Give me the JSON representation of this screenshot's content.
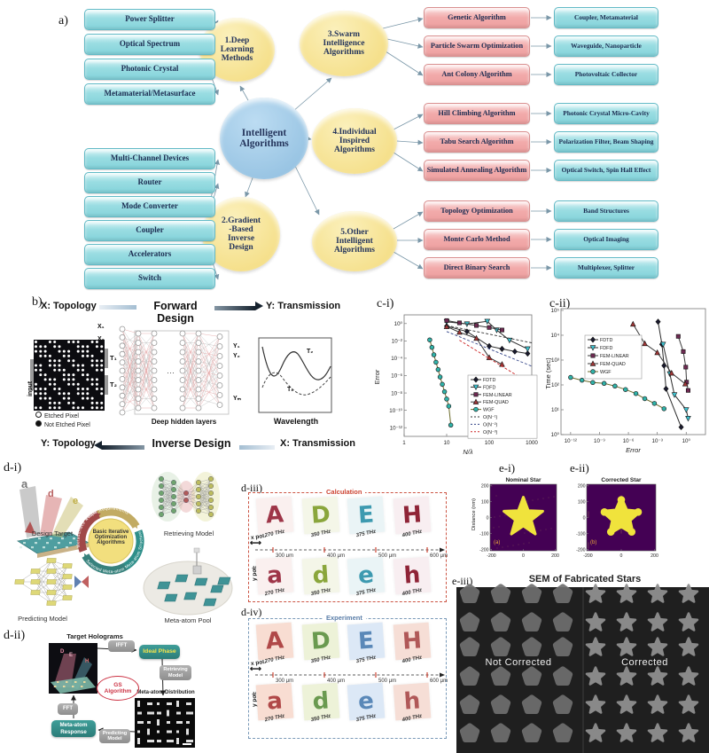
{
  "colors": {
    "cyan_box": "#9adde2",
    "pink_box": "#f2abab",
    "yellow_node": "#f3da7a",
    "blue_node": "#8cbcde",
    "arrow": "#7a97a8",
    "tan_ribbon": "#c2ab63",
    "teal_ribbon": "#2f8f8a",
    "teal_ribbon2": "#37817c",
    "red_ribbon": "#a04848",
    "star_yellow": "#f0e33c",
    "star_bg": "#440154",
    "calc_border": "#cc5544",
    "exp_border": "#7a9ab8",
    "letter_colors": [
      "#9e3548",
      "#8aa63c",
      "#3d9ab0",
      "#8f2437"
    ],
    "exp_letter_colors": [
      "#b04848",
      "#6a9a50",
      "#5a88b8",
      "#b05858"
    ],
    "calc_tints": [
      "#faf0ef",
      "#f4f6e8",
      "#eaf4f6",
      "#f8eef1"
    ],
    "exp_tints": [
      "#f8ddd2",
      "#edf2d8",
      "#dce8f6",
      "#f6ded6"
    ]
  },
  "panel_a": {
    "label": "a)",
    "center": "Intelligent\nAlgorithms",
    "nodes": {
      "deep": "1.Deep\nLearning\nMethods",
      "gradient": "2.Gradient\n-Based\nInverse\nDesign",
      "swarm": "3.Swarm\nIntelligence\nAlgorithms",
      "individual": "4.Individual\nInspired\nAlgorithms",
      "other": "5.Other\nIntelligent\nAlgorithms"
    },
    "deep_apps": [
      "Power Splitter",
      "Optical Spectrum",
      "Photonic Crystal",
      "Metamaterial/Metasurface"
    ],
    "gradient_apps": [
      "Multi-Channel Devices",
      "Router",
      "Mode Converter",
      "Coupler",
      "Accelerators",
      "Switch"
    ],
    "swarm_rows": [
      [
        "Genetic Algorithm",
        "Coupler, Metamaterial"
      ],
      [
        "Particle Swarm Optimization",
        "Waveguide, Nanoparticle"
      ],
      [
        "Ant Colony Algorithm",
        "Photovoltaic Collector"
      ]
    ],
    "individual_rows": [
      [
        "Hill Climbing Algorithm",
        "Photonic Crystal Micro-Cavity"
      ],
      [
        "Tabu Search Algorithm",
        "Polarization Filter, Beam Shaping"
      ],
      [
        "Simulated Annealing Algorithm",
        "Optical Switch, Spin Hall Effect"
      ]
    ],
    "other_rows": [
      [
        "Topology Optimization",
        "Band Structures"
      ],
      [
        "Monte Carlo Method",
        "Optical Imaging"
      ],
      [
        "Direct Binary Search",
        "Multiplexer, Splitter"
      ]
    ]
  },
  "panel_b": {
    "label": "b)",
    "forward": {
      "input": "X: Topology",
      "name": "Forward Design",
      "output": "Y: Transmission"
    },
    "inverse": {
      "output": "Y: Topology",
      "name": "Inverse Design",
      "input": "X: Transmission"
    },
    "grid_label": "input",
    "legend": [
      "Etched Pixel",
      "Not Etched Pixel"
    ],
    "ports": {
      "t1": "T₁",
      "t2": "T₂"
    },
    "inputs": [
      "X₁",
      "X₂",
      "Xₙ"
    ],
    "outputs": [
      "Y₁",
      "Y₂",
      "Yₘ"
    ],
    "hidden_caption": "Deep hidden layers",
    "plot": {
      "curve1": "T₁",
      "curve2": "T₂",
      "xlabel": "Wavelength"
    }
  },
  "chart_data": [
    {
      "id": "c-i",
      "panel_label": "c-i)",
      "type": "scatter",
      "xscale": "log",
      "yscale": "log",
      "xlabel": "N/λ",
      "ylabel": "Error",
      "xlim": [
        1,
        1000
      ],
      "ylim": [
        1e-13,
        10
      ],
      "xticks": {
        "values": [
          1,
          10,
          100,
          1000
        ],
        "labels": [
          "1",
          "10",
          "100",
          "1000"
        ]
      },
      "yticks": {
        "values": [
          1,
          0.01,
          0.0001,
          1e-06,
          1e-08,
          1e-10,
          1e-12
        ],
        "labels": [
          "10⁰",
          "10⁻²",
          "10⁻⁴",
          "10⁻⁶",
          "10⁻⁸",
          "10⁻¹⁰",
          "10⁻¹²"
        ]
      },
      "legend_pos": "lower right",
      "series": [
        {
          "name": "FDTD",
          "marker": "diamond",
          "color": "#1a1a2e",
          "line": "#2a2a2a",
          "x": [
            10,
            30,
            100,
            200,
            400,
            800
          ],
          "y": [
            0.5,
            0.12,
            0.0025,
            0.0012,
            0.0006,
            0.00035
          ]
        },
        {
          "name": "FDFD",
          "marker": "tri-down",
          "color": "#3fc1cf",
          "line": "#2a2a2a",
          "x": [
            10,
            30,
            90,
            150,
            300,
            800
          ],
          "y": [
            1.6,
            0.9,
            1.8,
            0.18,
            0.012,
            0.0012
          ]
        },
        {
          "name": "FEM-LINEAR",
          "marker": "square",
          "color": "#6e2a52",
          "line": "#3a3a3a",
          "x": [
            10,
            20,
            50,
            100,
            200
          ],
          "y": [
            2.2,
            1.2,
            0.6,
            0.35,
            0.18
          ]
        },
        {
          "name": "FEM-QUAD",
          "marker": "tri-up",
          "color": "#a23737",
          "line": "#3a3a3a",
          "x": [
            10,
            20,
            50,
            100,
            200
          ],
          "y": [
            0.45,
            0.1,
            0.02,
            0.00012,
            2e-05
          ]
        },
        {
          "name": "WGF",
          "marker": "circle",
          "color": "#2fb3a9",
          "line": "#6b6b2a",
          "x": [
            4,
            4.5,
            5,
            5.6,
            6.3,
            7,
            7.9,
            8.9,
            10,
            11.2,
            12.5
          ],
          "y": [
            0.013,
            0.0018,
            0.00025,
            3.5e-05,
            5e-06,
            7e-07,
            1e-07,
            1.4e-08,
            2e-09,
            3e-10,
            2e-12
          ]
        },
        {
          "name": "O(N⁻¹)",
          "dash": true,
          "color": "#333333",
          "x": [
            10,
            1000
          ],
          "y": [
            0.6,
            0.006
          ]
        },
        {
          "name": "O(N⁻²)",
          "dash": true,
          "color": "#334488",
          "x": [
            10,
            1000
          ],
          "y": [
            0.12,
            1.2e-05
          ]
        },
        {
          "name": "O(N⁻³)",
          "dash": true,
          "color": "#cc2222",
          "x": [
            20,
            800
          ],
          "y": [
            0.012,
            1.9e-07
          ]
        }
      ]
    },
    {
      "id": "c-ii",
      "panel_label": "c-ii)",
      "type": "scatter",
      "xscale": "log",
      "yscale": "log",
      "xlabel": "Error",
      "ylabel": "Time (sec)",
      "xlim": [
        1e-13,
        100
      ],
      "ylim": [
        1,
        120000.0
      ],
      "xticks": {
        "values": [
          1e-12,
          1e-09,
          1e-06,
          0.001,
          1
        ],
        "labels": [
          "10⁻¹²",
          "10⁻⁹",
          "10⁻⁶",
          "10⁻³",
          "10⁰"
        ]
      },
      "yticks": {
        "values": [
          1,
          10,
          100,
          1000,
          10000.0,
          100000.0
        ],
        "labels": [
          "10⁰",
          "10¹",
          "10²",
          "10³",
          "10⁴",
          "10⁵"
        ]
      },
      "legend_pos": "upper left",
      "series": [
        {
          "name": "FDTD",
          "marker": "diamond",
          "color": "#1a1a2e",
          "line": "#2a2a2a",
          "x": [
            0.0012,
            0.003,
            0.005,
            0.008,
            0.3
          ],
          "y": [
            35000.0,
            4300.0,
            600,
            70,
            2
          ]
        },
        {
          "name": "FDFD",
          "marker": "tri-down",
          "color": "#3fc1cf",
          "line": "#2a2a2a",
          "x": [
            0.004,
            0.02,
            0.06,
            1,
            1.6
          ],
          "y": [
            4300.0,
            280,
            40,
            10,
            4.5
          ]
        },
        {
          "name": "FEM-LINEAR",
          "marker": "square",
          "color": "#6e2a52",
          "line": "#3a3a3a",
          "x": [
            0.15,
            0.5,
            0.9,
            1.1,
            1.6
          ],
          "y": [
            9000.0,
            2200.0,
            520,
            130,
            60
          ]
        },
        {
          "name": "FEM-QUAD",
          "marker": "tri-up",
          "color": "#a23737",
          "line": "#3a3a3a",
          "x": [
            3e-06,
            5e-05,
            0.001,
            0.03,
            0.8
          ],
          "y": [
            28000.0,
            4600.0,
            2000.0,
            300,
            110
          ]
        },
        {
          "name": "WGF",
          "marker": "circle",
          "color": "#2fb3a9",
          "line": "#6b6b2a",
          "x": [
            1e-12,
            1.5e-11,
            2e-10,
            3e-09,
            4e-08,
            5e-07,
            6e-06,
            5e-05,
            0.0005,
            0.005
          ],
          "y": [
            200,
            155,
            125,
            115,
            90,
            65,
            45,
            28,
            18,
            11
          ]
        }
      ]
    }
  ],
  "panel_d1": {
    "label": "d-i)",
    "center": "Basic Iterative\nOptimization\nAlgorithms",
    "ribbons": {
      "top": "Phase Requirements",
      "right": "Meta-atom Structure",
      "bottom": "Selected Meta-atoms",
      "left": "Metasurface Response"
    },
    "captions": {
      "design_target": "Design Target",
      "retrieving": "Retrieving Model",
      "predicting": "Predicting Model",
      "pool": "Meta-atom Pool"
    }
  },
  "panel_d2": {
    "label": "d-ii)",
    "target": "Target Holograms",
    "ifft": "IFFT",
    "ideal_phase": "Ideal Phase",
    "retrieving": "Retrieving\nModel",
    "distribution": "Meta-atom Distribution",
    "gs": "GS\nAlgorithm",
    "fft": "FFT",
    "response": "Meta-atom\nResponse",
    "predicting": "Predicting\nModel"
  },
  "panel_d3": {
    "label": "d-iii)",
    "title": "Calculation",
    "row_top": {
      "letters": [
        "A",
        "D",
        "E",
        "H"
      ],
      "freqs": [
        "270 THz",
        "350 THz",
        "375 THz",
        "400 THz"
      ]
    },
    "row_bottom": {
      "letters": [
        "a",
        "d",
        "e",
        "h"
      ],
      "freqs": [
        "270 THz",
        "350 THz",
        "375 THz",
        "400 THz"
      ]
    },
    "distances": [
      "300 μm",
      "400 μm",
      "500 μm",
      "600 μm"
    ],
    "x_pol": "x pol.",
    "y_pol": "y pol."
  },
  "panel_d4": {
    "label": "d-iv)",
    "title": "Experiment",
    "row_top": {
      "letters": [
        "A",
        "D",
        "E",
        "H"
      ],
      "freqs": [
        "270 THz",
        "350 THz",
        "375 THz",
        "400 THz"
      ]
    },
    "row_bottom": {
      "letters": [
        "a",
        "d",
        "e",
        "h"
      ],
      "freqs": [
        "270 THz",
        "350 THz",
        "375 THz",
        "400 THz"
      ]
    },
    "distances": [
      "300 μm",
      "400 μm",
      "500 μm",
      "600 μm"
    ],
    "x_pol": "x pol.",
    "y_pol": "y pol."
  },
  "panel_e": {
    "e1_label": "e-i)",
    "e2_label": "e-ii)",
    "e3_label": "e-iii)",
    "star1": {
      "title": "Nominal Star",
      "annotation": "(a)"
    },
    "star2": {
      "title": "Corrected Star",
      "annotation": "(b)"
    },
    "ylabel": "Distance (nm)",
    "yticks": [
      "200",
      "100",
      "0",
      "-100",
      "-200"
    ],
    "xticks": [
      "-200",
      "0",
      "200"
    ],
    "sem": {
      "title": "SEM of Fabricated Stars",
      "left_label": "Not Corrected",
      "right_label": "Corrected",
      "rows": 6,
      "cols": 4
    }
  }
}
